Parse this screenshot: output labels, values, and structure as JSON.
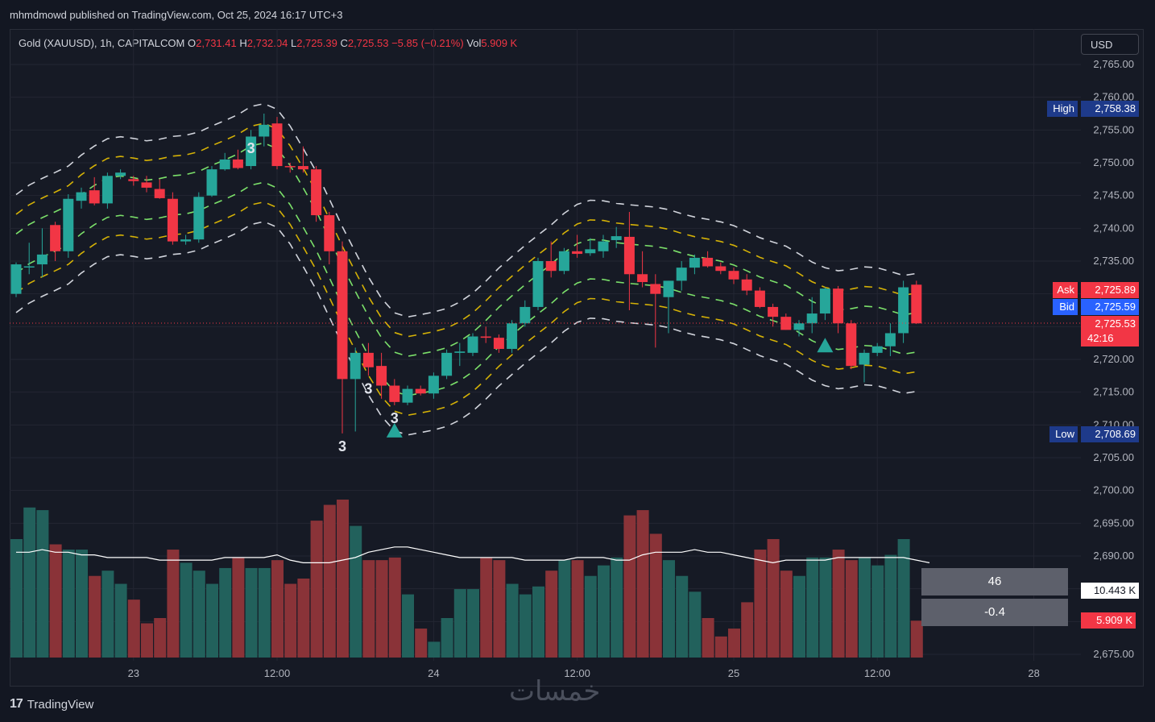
{
  "header": {
    "published": "mhmdmowd published on TradingView.com, Oct 25, 2024 16:17 UTC+3"
  },
  "legend": {
    "symbol": "Gold (XAUUSD), 1h, CAPITALCOM",
    "o_label": "O",
    "o": "2,731.41",
    "h_label": "H",
    "h": "2,732.04",
    "l_label": "L",
    "l": "2,725.39",
    "c_label": "C",
    "c": "2,725.53",
    "change": "−5.85 (−0.21%)",
    "vol_label": "Vol",
    "vol": "5.909 K"
  },
  "currency_button": "USD",
  "price_tags": {
    "high_label": "High",
    "high": "2,758.38",
    "low_label": "Low",
    "low": "2,708.69",
    "ask_label": "Ask",
    "ask": "2,725.89",
    "bid_label": "Bid",
    "bid": "2,725.59",
    "last": "2,725.53",
    "countdown": "42:16",
    "volume_ma": "10.443 K",
    "volume_last": "5.909 K"
  },
  "stat_boxes": [
    "46",
    "-0.4"
  ],
  "footer": {
    "brand": "TradingView",
    "watermark": "خمسات"
  },
  "colors": {
    "up": "#26a69a",
    "down": "#f23645",
    "up_vol": "#22615c",
    "down_vol": "#8a3338",
    "background": "#161a25"
  },
  "chart_data": {
    "type": "candlestick",
    "symbol": "Gold (XAUUSD)",
    "timeframe": "1h",
    "ylim": [
      2674,
      2767
    ],
    "y_ticks": [
      2765,
      2760,
      2755,
      2750,
      2745,
      2740,
      2735,
      2730,
      2725,
      2720,
      2715,
      2710,
      2705,
      2700,
      2695,
      2690,
      2685,
      2680,
      2675
    ],
    "y_tick_labels": [
      "2,765.00",
      "2,760.00",
      "2,755.00",
      "2,750.00",
      "2,745.00",
      "2,740.00",
      "2,735.00",
      "2,730.00",
      "2,725.00",
      "2,720.00",
      "2,715.00",
      "2,710.00",
      "2,705.00",
      "2,700.00",
      "2,695.00",
      "2,690.00",
      "2,685.00",
      "2,680.00",
      "2,675.00"
    ],
    "x_tick_labels": [
      {
        "i": 9,
        "label": "23"
      },
      {
        "i": 20,
        "label": "12:00"
      },
      {
        "i": 32,
        "label": "24"
      },
      {
        "i": 43,
        "label": "12:00"
      },
      {
        "i": 55,
        "label": "25"
      },
      {
        "i": 66,
        "label": "12:00"
      },
      {
        "i": 78,
        "label": "28"
      }
    ],
    "candles": [
      {
        "o": 2730.0,
        "h": 2734.8,
        "l": 2729.5,
        "c": 2734.5,
        "v": 45
      },
      {
        "o": 2734.2,
        "h": 2737.8,
        "l": 2733.0,
        "c": 2734.2,
        "v": 57
      },
      {
        "o": 2734.5,
        "h": 2740.0,
        "l": 2732.5,
        "c": 2736.0,
        "v": 56
      },
      {
        "o": 2740.5,
        "h": 2741.0,
        "l": 2735.0,
        "c": 2736.5,
        "v": 43
      },
      {
        "o": 2736.5,
        "h": 2745.2,
        "l": 2735.5,
        "c": 2744.5,
        "v": 41
      },
      {
        "o": 2744.2,
        "h": 2746.2,
        "l": 2743.0,
        "c": 2745.5,
        "v": 41
      },
      {
        "o": 2745.8,
        "h": 2747.8,
        "l": 2743.5,
        "c": 2743.8,
        "v": 31
      },
      {
        "o": 2743.8,
        "h": 2748.5,
        "l": 2743.0,
        "c": 2748.0,
        "v": 33
      },
      {
        "o": 2748.0,
        "h": 2749.0,
        "l": 2747.5,
        "c": 2748.5,
        "v": 28
      },
      {
        "o": 2747.5,
        "h": 2748.0,
        "l": 2746.5,
        "c": 2747.2,
        "v": 22
      },
      {
        "o": 2747.0,
        "h": 2748.0,
        "l": 2745.5,
        "c": 2746.2,
        "v": 13
      },
      {
        "o": 2746.0,
        "h": 2747.5,
        "l": 2744.5,
        "c": 2744.6,
        "v": 15
      },
      {
        "o": 2744.5,
        "h": 2745.5,
        "l": 2737.5,
        "c": 2738.0,
        "v": 41
      },
      {
        "o": 2738.0,
        "h": 2739.0,
        "l": 2737.5,
        "c": 2738.3,
        "v": 36
      },
      {
        "o": 2738.3,
        "h": 2745.5,
        "l": 2737.8,
        "c": 2744.8,
        "v": 33
      },
      {
        "o": 2745.0,
        "h": 2749.5,
        "l": 2744.8,
        "c": 2749.0,
        "v": 28
      },
      {
        "o": 2749.0,
        "h": 2751.5,
        "l": 2748.8,
        "c": 2750.5,
        "v": 34
      },
      {
        "o": 2750.5,
        "h": 2752.0,
        "l": 2749.0,
        "c": 2749.2,
        "v": 38
      },
      {
        "o": 2749.5,
        "h": 2755.0,
        "l": 2749.0,
        "c": 2754.0,
        "v": 34
      },
      {
        "o": 2754.0,
        "h": 2757.5,
        "l": 2752.5,
        "c": 2755.8,
        "v": 34
      },
      {
        "o": 2756.0,
        "h": 2757.0,
        "l": 2749.0,
        "c": 2749.5,
        "v": 37
      },
      {
        "o": 2749.5,
        "h": 2750.0,
        "l": 2748.5,
        "c": 2749.4,
        "v": 28
      },
      {
        "o": 2749.5,
        "h": 2752.5,
        "l": 2748.5,
        "c": 2749.0,
        "v": 30
      },
      {
        "o": 2749.0,
        "h": 2749.5,
        "l": 2741.0,
        "c": 2742.0,
        "v": 52
      },
      {
        "o": 2742.0,
        "h": 2742.5,
        "l": 2734.5,
        "c": 2736.5,
        "v": 58
      },
      {
        "o": 2736.5,
        "h": 2738.0,
        "l": 2708.7,
        "c": 2717.0,
        "v": 60
      },
      {
        "o": 2717.0,
        "h": 2721.8,
        "l": 2709.0,
        "c": 2721.0,
        "v": 50
      },
      {
        "o": 2721.0,
        "h": 2722.5,
        "l": 2717.5,
        "c": 2718.8,
        "v": 37
      },
      {
        "o": 2719.0,
        "h": 2721.0,
        "l": 2714.0,
        "c": 2716.0,
        "v": 37
      },
      {
        "o": 2716.0,
        "h": 2717.0,
        "l": 2713.0,
        "c": 2713.5,
        "v": 38
      },
      {
        "o": 2713.4,
        "h": 2716.0,
        "l": 2713.0,
        "c": 2715.5,
        "v": 24
      },
      {
        "o": 2715.5,
        "h": 2716.0,
        "l": 2714.5,
        "c": 2714.8,
        "v": 11
      },
      {
        "o": 2714.8,
        "h": 2718.0,
        "l": 2714.0,
        "c": 2717.5,
        "v": 6
      },
      {
        "o": 2717.5,
        "h": 2721.5,
        "l": 2717.0,
        "c": 2721.0,
        "v": 15
      },
      {
        "o": 2721.0,
        "h": 2722.5,
        "l": 2719.0,
        "c": 2721.2,
        "v": 26
      },
      {
        "o": 2721.0,
        "h": 2724.0,
        "l": 2720.5,
        "c": 2723.5,
        "v": 26
      },
      {
        "o": 2723.5,
        "h": 2725.0,
        "l": 2722.5,
        "c": 2723.3,
        "v": 38
      },
      {
        "o": 2723.3,
        "h": 2723.8,
        "l": 2721.0,
        "c": 2721.6,
        "v": 37
      },
      {
        "o": 2721.6,
        "h": 2726.0,
        "l": 2721.0,
        "c": 2725.5,
        "v": 28
      },
      {
        "o": 2725.5,
        "h": 2729.0,
        "l": 2725.0,
        "c": 2728.0,
        "v": 24
      },
      {
        "o": 2728.0,
        "h": 2735.5,
        "l": 2727.5,
        "c": 2735.0,
        "v": 27
      },
      {
        "o": 2735.0,
        "h": 2738.0,
        "l": 2732.5,
        "c": 2733.5,
        "v": 33
      },
      {
        "o": 2733.5,
        "h": 2737.0,
        "l": 2733.0,
        "c": 2736.5,
        "v": 37
      },
      {
        "o": 2736.5,
        "h": 2739.0,
        "l": 2735.5,
        "c": 2736.1,
        "v": 37
      },
      {
        "o": 2736.2,
        "h": 2738.5,
        "l": 2735.8,
        "c": 2736.8,
        "v": 31
      },
      {
        "o": 2736.5,
        "h": 2739.0,
        "l": 2735.5,
        "c": 2738.0,
        "v": 35
      },
      {
        "o": 2738.2,
        "h": 2740.2,
        "l": 2737.0,
        "c": 2738.8,
        "v": 38
      },
      {
        "o": 2738.7,
        "h": 2742.5,
        "l": 2727.5,
        "c": 2733.0,
        "v": 54
      },
      {
        "o": 2733.0,
        "h": 2736.5,
        "l": 2731.0,
        "c": 2731.8,
        "v": 56
      },
      {
        "o": 2731.5,
        "h": 2733.0,
        "l": 2721.8,
        "c": 2730.0,
        "v": 47
      },
      {
        "o": 2729.5,
        "h": 2732.0,
        "l": 2724.0,
        "c": 2732.0,
        "v": 37
      },
      {
        "o": 2732.0,
        "h": 2735.0,
        "l": 2730.5,
        "c": 2734.0,
        "v": 31
      },
      {
        "o": 2734.0,
        "h": 2736.0,
        "l": 2733.0,
        "c": 2735.5,
        "v": 25
      },
      {
        "o": 2735.5,
        "h": 2736.5,
        "l": 2734.0,
        "c": 2734.2,
        "v": 15
      },
      {
        "o": 2734.2,
        "h": 2734.8,
        "l": 2733.0,
        "c": 2733.5,
        "v": 8
      },
      {
        "o": 2733.5,
        "h": 2734.0,
        "l": 2731.5,
        "c": 2732.2,
        "v": 11
      },
      {
        "o": 2732.2,
        "h": 2733.0,
        "l": 2729.8,
        "c": 2730.5,
        "v": 21
      },
      {
        "o": 2730.5,
        "h": 2731.0,
        "l": 2727.8,
        "c": 2728.0,
        "v": 41
      },
      {
        "o": 2728.0,
        "h": 2728.5,
        "l": 2725.0,
        "c": 2726.5,
        "v": 45
      },
      {
        "o": 2726.5,
        "h": 2727.0,
        "l": 2724.5,
        "c": 2724.5,
        "v": 33
      },
      {
        "o": 2724.5,
        "h": 2726.0,
        "l": 2723.5,
        "c": 2725.5,
        "v": 31
      },
      {
        "o": 2725.5,
        "h": 2729.5,
        "l": 2724.0,
        "c": 2727.0,
        "v": 38
      },
      {
        "o": 2727.0,
        "h": 2731.0,
        "l": 2726.0,
        "c": 2730.8,
        "v": 38
      },
      {
        "o": 2730.8,
        "h": 2731.2,
        "l": 2724.0,
        "c": 2725.5,
        "v": 41
      },
      {
        "o": 2725.5,
        "h": 2726.0,
        "l": 2718.5,
        "c": 2719.0,
        "v": 37
      },
      {
        "o": 2719.2,
        "h": 2721.5,
        "l": 2716.5,
        "c": 2721.0,
        "v": 38
      },
      {
        "o": 2721.0,
        "h": 2722.5,
        "l": 2720.5,
        "c": 2722.0,
        "v": 35
      },
      {
        "o": 2722.0,
        "h": 2725.5,
        "l": 2720.5,
        "c": 2724.0,
        "v": 39
      },
      {
        "o": 2724.0,
        "h": 2732.0,
        "l": 2722.5,
        "c": 2731.0,
        "v": 45
      },
      {
        "o": 2731.4,
        "h": 2732.0,
        "l": 2725.4,
        "c": 2725.5,
        "v": 14
      }
    ],
    "volume_ma": [
      40,
      40,
      41,
      40,
      40,
      39,
      39,
      38,
      38,
      38,
      38,
      37,
      37,
      37,
      37,
      37,
      38,
      38,
      38,
      38,
      39,
      37,
      36,
      36,
      36,
      37,
      38,
      40,
      41,
      42,
      42,
      41,
      40,
      39,
      38,
      38,
      38,
      38,
      38,
      37,
      37,
      37,
      37,
      38,
      38,
      38,
      37,
      37,
      39,
      40,
      40,
      40,
      41,
      40,
      40,
      39,
      38,
      37,
      36,
      37,
      37,
      37,
      37,
      38,
      38,
      38,
      38,
      38,
      38,
      37,
      36
    ],
    "markers": {
      "numbers_3": [
        18,
        25,
        27,
        29
      ],
      "triangle_up": [
        29,
        62
      ]
    }
  }
}
